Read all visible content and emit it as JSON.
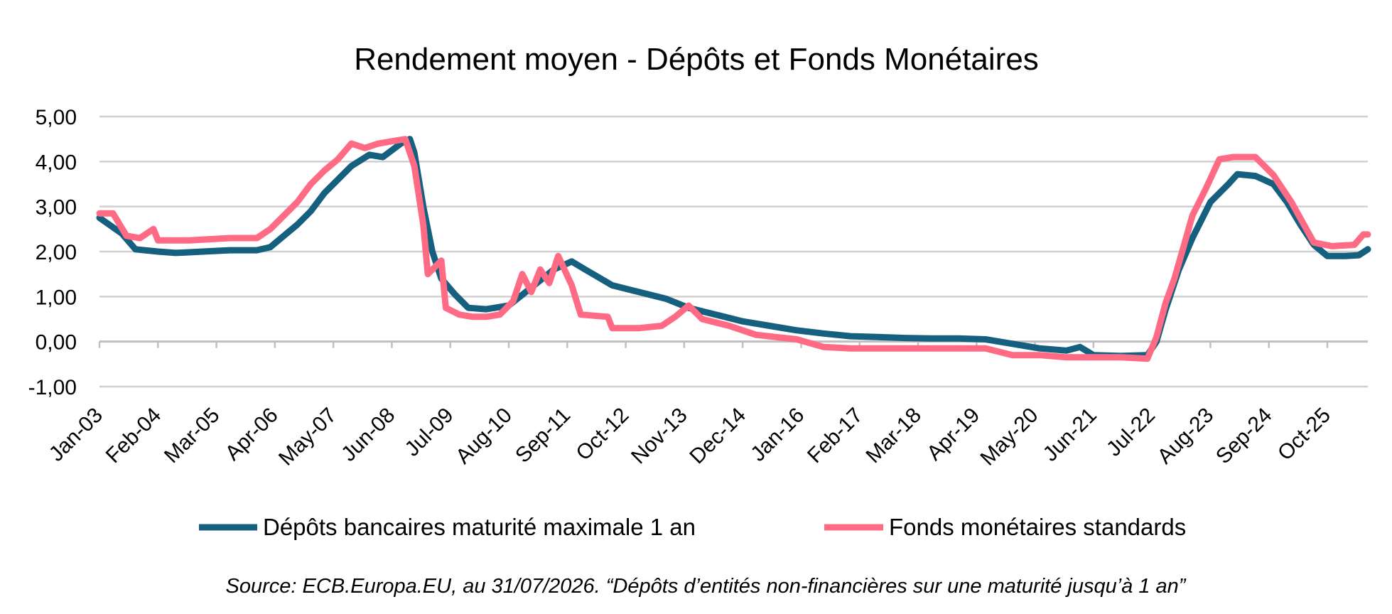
{
  "chart_data": {
    "type": "line",
    "title": "Rendement moyen - Dépôts et Fonds Monétaires",
    "xlabel": "",
    "ylabel": "",
    "ylim": [
      -1,
      5
    ],
    "y_ticks": [
      "5,00",
      "4,00",
      "3,00",
      "2,00",
      "1,00",
      "0,00",
      "-1,00"
    ],
    "x_range": [
      "2003-01",
      "2026-07"
    ],
    "x_tick_labels": [
      "Jan-03",
      "Feb-04",
      "Mar-05",
      "Apr-06",
      "May-07",
      "Jun-08",
      "Jul-09",
      "Aug-10",
      "Sep-11",
      "Oct-12",
      "Nov-13",
      "Dec-14",
      "Jan-16",
      "Feb-17",
      "Mar-18",
      "Apr-19",
      "May-20",
      "Jun-21",
      "Jul-22",
      "Aug-23",
      "Sep-24",
      "Oct-25"
    ],
    "grid": true,
    "legend_position": "bottom",
    "series": [
      {
        "name": "Dépôts bancaires maturité maximale 1 an",
        "color": "#16607f",
        "points": [
          [
            "2003-01",
            2.75
          ],
          [
            "2003-06",
            2.4
          ],
          [
            "2003-09",
            2.05
          ],
          [
            "2004-02",
            2.0
          ],
          [
            "2004-06",
            1.97
          ],
          [
            "2004-12",
            2.0
          ],
          [
            "2005-06",
            2.03
          ],
          [
            "2005-12",
            2.03
          ],
          [
            "2006-03",
            2.1
          ],
          [
            "2006-06",
            2.35
          ],
          [
            "2006-09",
            2.6
          ],
          [
            "2006-12",
            2.9
          ],
          [
            "2007-03",
            3.3
          ],
          [
            "2007-06",
            3.6
          ],
          [
            "2007-09",
            3.9
          ],
          [
            "2008-01",
            4.15
          ],
          [
            "2008-04",
            4.1
          ],
          [
            "2008-08",
            4.4
          ],
          [
            "2008-10",
            4.5
          ],
          [
            "2008-11",
            4.2
          ],
          [
            "2009-01",
            3.0
          ],
          [
            "2009-03",
            2.0
          ],
          [
            "2009-05",
            1.4
          ],
          [
            "2009-08",
            1.05
          ],
          [
            "2009-11",
            0.75
          ],
          [
            "2010-03",
            0.72
          ],
          [
            "2010-08",
            0.8
          ],
          [
            "2011-01",
            1.2
          ],
          [
            "2011-06",
            1.6
          ],
          [
            "2011-10",
            1.78
          ],
          [
            "2012-01",
            1.6
          ],
          [
            "2012-07",
            1.25
          ],
          [
            "2013-01",
            1.1
          ],
          [
            "2013-07",
            0.95
          ],
          [
            "2013-12",
            0.75
          ],
          [
            "2014-06",
            0.6
          ],
          [
            "2014-12",
            0.45
          ],
          [
            "2015-06",
            0.35
          ],
          [
            "2015-12",
            0.25
          ],
          [
            "2016-06",
            0.18
          ],
          [
            "2016-12",
            0.12
          ],
          [
            "2017-06",
            0.1
          ],
          [
            "2017-12",
            0.08
          ],
          [
            "2018-06",
            0.07
          ],
          [
            "2018-12",
            0.07
          ],
          [
            "2019-06",
            0.05
          ],
          [
            "2019-12",
            -0.05
          ],
          [
            "2020-06",
            -0.15
          ],
          [
            "2020-12",
            -0.2
          ],
          [
            "2021-03",
            -0.12
          ],
          [
            "2021-06",
            -0.3
          ],
          [
            "2021-12",
            -0.32
          ],
          [
            "2022-06",
            -0.3
          ],
          [
            "2022-08",
            0.0
          ],
          [
            "2022-10",
            0.7
          ],
          [
            "2023-01",
            1.6
          ],
          [
            "2023-04",
            2.3
          ],
          [
            "2023-08",
            3.1
          ],
          [
            "2023-12",
            3.5
          ],
          [
            "2024-02",
            3.72
          ],
          [
            "2024-06",
            3.68
          ],
          [
            "2024-10",
            3.5
          ],
          [
            "2025-01",
            3.1
          ],
          [
            "2025-04",
            2.6
          ],
          [
            "2025-07",
            2.15
          ],
          [
            "2025-10",
            1.9
          ],
          [
            "2026-02",
            1.9
          ],
          [
            "2026-05",
            1.92
          ],
          [
            "2026-07",
            2.05
          ]
        ]
      },
      {
        "name": "Fonds monétaires standards",
        "color": "#ff6b85",
        "points": [
          [
            "2003-01",
            2.85
          ],
          [
            "2003-04",
            2.85
          ],
          [
            "2003-07",
            2.35
          ],
          [
            "2003-10",
            2.3
          ],
          [
            "2004-01",
            2.5
          ],
          [
            "2004-02",
            2.25
          ],
          [
            "2004-09",
            2.25
          ],
          [
            "2005-06",
            2.3
          ],
          [
            "2005-12",
            2.3
          ],
          [
            "2006-03",
            2.5
          ],
          [
            "2006-06",
            2.8
          ],
          [
            "2006-09",
            3.1
          ],
          [
            "2006-12",
            3.5
          ],
          [
            "2007-03",
            3.8
          ],
          [
            "2007-06",
            4.05
          ],
          [
            "2007-09",
            4.4
          ],
          [
            "2007-12",
            4.3
          ],
          [
            "2008-03",
            4.4
          ],
          [
            "2008-06",
            4.45
          ],
          [
            "2008-09",
            4.5
          ],
          [
            "2008-11",
            3.9
          ],
          [
            "2009-01",
            2.6
          ],
          [
            "2009-02",
            1.5
          ],
          [
            "2009-05",
            1.8
          ],
          [
            "2009-06",
            0.75
          ],
          [
            "2009-09",
            0.6
          ],
          [
            "2009-12",
            0.55
          ],
          [
            "2010-03",
            0.55
          ],
          [
            "2010-06",
            0.6
          ],
          [
            "2010-09",
            0.9
          ],
          [
            "2010-11",
            1.5
          ],
          [
            "2011-01",
            1.1
          ],
          [
            "2011-03",
            1.6
          ],
          [
            "2011-05",
            1.3
          ],
          [
            "2011-07",
            1.9
          ],
          [
            "2011-10",
            1.25
          ],
          [
            "2011-12",
            0.6
          ],
          [
            "2012-06",
            0.55
          ],
          [
            "2012-07",
            0.3
          ],
          [
            "2013-01",
            0.3
          ],
          [
            "2013-06",
            0.35
          ],
          [
            "2013-09",
            0.55
          ],
          [
            "2013-12",
            0.8
          ],
          [
            "2014-03",
            0.5
          ],
          [
            "2014-09",
            0.35
          ],
          [
            "2015-03",
            0.15
          ],
          [
            "2015-12",
            0.05
          ],
          [
            "2016-06",
            -0.12
          ],
          [
            "2016-12",
            -0.15
          ],
          [
            "2017-06",
            -0.15
          ],
          [
            "2017-12",
            -0.15
          ],
          [
            "2018-06",
            -0.15
          ],
          [
            "2018-12",
            -0.15
          ],
          [
            "2019-06",
            -0.15
          ],
          [
            "2019-12",
            -0.3
          ],
          [
            "2020-06",
            -0.3
          ],
          [
            "2020-12",
            -0.35
          ],
          [
            "2021-06",
            -0.35
          ],
          [
            "2021-12",
            -0.35
          ],
          [
            "2022-06",
            -0.38
          ],
          [
            "2022-08",
            0.1
          ],
          [
            "2022-10",
            0.85
          ],
          [
            "2022-12",
            1.4
          ],
          [
            "2023-02",
            2.1
          ],
          [
            "2023-04",
            2.8
          ],
          [
            "2023-07",
            3.4
          ],
          [
            "2023-10",
            4.05
          ],
          [
            "2024-01",
            4.1
          ],
          [
            "2024-06",
            4.1
          ],
          [
            "2024-10",
            3.7
          ],
          [
            "2025-02",
            3.1
          ],
          [
            "2025-07",
            2.2
          ],
          [
            "2025-11",
            2.12
          ],
          [
            "2026-04",
            2.15
          ],
          [
            "2026-06",
            2.38
          ],
          [
            "2026-07",
            2.38
          ]
        ]
      }
    ]
  },
  "source_note": "Source: ECB.Europa.EU, au 31/07/2026. “Dépôts d’entités non-financières sur une maturité jusqu’à 1 an”"
}
